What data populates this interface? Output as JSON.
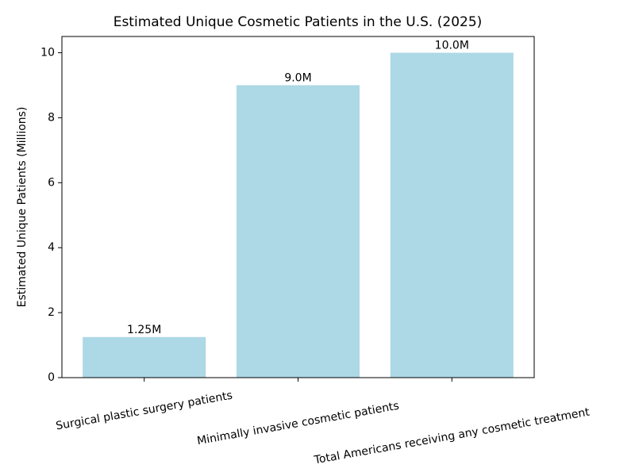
{
  "chart_data": {
    "type": "bar",
    "title": "Estimated Unique Cosmetic Patients in the U.S. (2025)",
    "y_label": "Estimated Unique Patients (Millions)",
    "categories": [
      "Surgical plastic surgery patients",
      "Minimally invasive cosmetic patients",
      "Total Americans receiving any cosmetic treatment"
    ],
    "values": [
      1.25,
      9.0,
      10.0
    ],
    "value_labels": [
      "1.25M",
      "9.0M",
      "10.0M"
    ],
    "color": "#add8e6",
    "ylim": [
      0,
      10.5
    ],
    "yticks": [
      0,
      2,
      4,
      6,
      8,
      10
    ],
    "grid": false
  }
}
